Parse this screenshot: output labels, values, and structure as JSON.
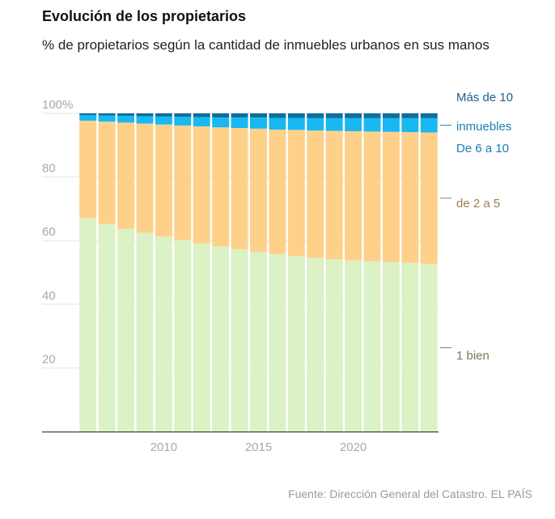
{
  "title": "Evolución de los propietarios",
  "subtitle": "% de propietarios según la cantidad de inmuebles urbanos en sus manos",
  "source": "Fuente: Dirección General del Catastro. EL PAÍS",
  "chart_data": {
    "type": "bar",
    "stacked": true,
    "x": [
      2006,
      2007,
      2008,
      2009,
      2010,
      2011,
      2012,
      2013,
      2014,
      2015,
      2016,
      2017,
      2018,
      2019,
      2020,
      2021,
      2022,
      2023,
      2024
    ],
    "ylim": [
      0,
      100
    ],
    "yticks": [
      20,
      40,
      60,
      80,
      100
    ],
    "ytick_labels": [
      "20",
      "40",
      "60",
      "80",
      "100%"
    ],
    "xticks": [
      2010,
      2015,
      2020
    ],
    "xtick_labels": [
      "2010",
      "2015",
      "2020"
    ],
    "grid": true,
    "series": [
      {
        "name": "1 bien",
        "color": "#dcf1c4",
        "label_color": "#6f7f57",
        "values": [
          67.0,
          65.2,
          63.7,
          62.5,
          61.3,
          60.2,
          59.1,
          58.2,
          57.3,
          56.5,
          55.8,
          55.2,
          54.6,
          54.2,
          53.8,
          53.5,
          53.2,
          53.0,
          52.7
        ]
      },
      {
        "name": "de 2 a 5",
        "color": "#ffd08a",
        "label_color": "#9e8050",
        "values": [
          30.7,
          32.2,
          33.4,
          34.3,
          35.2,
          36.0,
          36.8,
          37.4,
          38.1,
          38.7,
          39.1,
          39.6,
          40.0,
          40.3,
          40.6,
          40.8,
          41.0,
          41.1,
          41.3
        ]
      },
      {
        "name": "De 6 a 10 inmuebles",
        "color": "#18b8f2",
        "label_color": "#1b7fb4",
        "values": [
          1.7,
          1.9,
          2.1,
          2.3,
          2.5,
          2.7,
          2.9,
          3.1,
          3.3,
          3.5,
          3.7,
          3.8,
          3.9,
          4.0,
          4.1,
          4.2,
          4.3,
          4.4,
          4.5
        ]
      },
      {
        "name": "Más de 10",
        "color": "#0e6e9c",
        "label_color": "#1f5f8b",
        "values": [
          0.6,
          0.7,
          0.8,
          0.9,
          1.0,
          1.1,
          1.2,
          1.3,
          1.3,
          1.3,
          1.4,
          1.4,
          1.5,
          1.5,
          1.5,
          1.5,
          1.5,
          1.5,
          1.5
        ]
      }
    ],
    "labels": {
      "mas_de_10": "Más de 10",
      "inmuebles": "inmuebles",
      "de_6_a_10": "De 6 a 10",
      "de_2_a_5": "de 2 a 5",
      "un_bien": "1 bien"
    }
  }
}
